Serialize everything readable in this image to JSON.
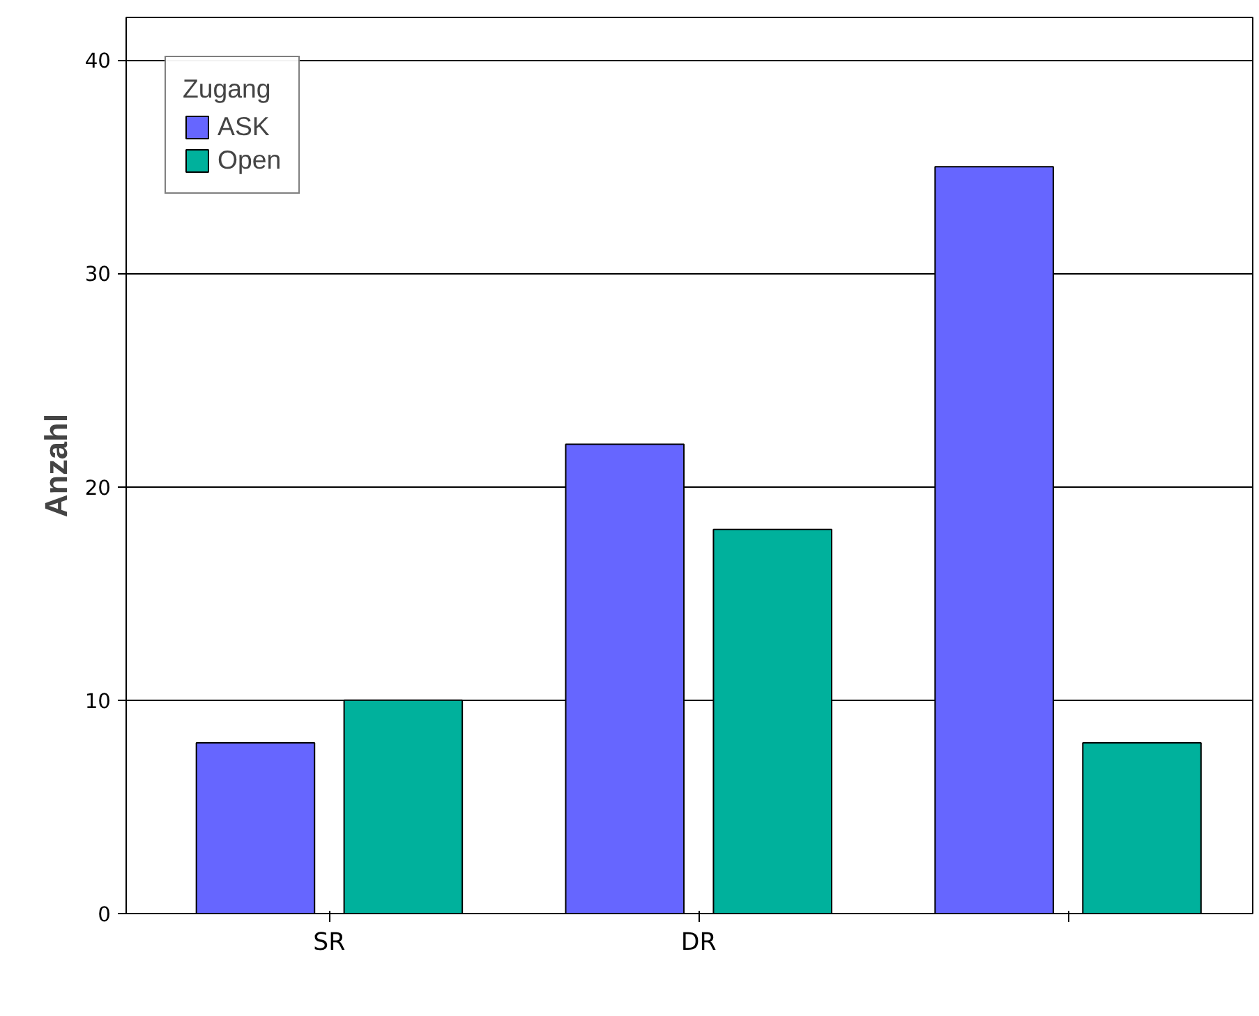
{
  "chart_data": {
    "type": "bar",
    "ylabel": "Anzahl",
    "legend_title": "Zugang",
    "categories": [
      "SR",
      "DR",
      null
    ],
    "series": [
      {
        "name": "ASK",
        "color": "#6666ff",
        "values": [
          8,
          22,
          35
        ]
      },
      {
        "name": "Open",
        "color": "#00b19c",
        "values": [
          10,
          18,
          8
        ]
      }
    ],
    "ylim": [
      0,
      42
    ],
    "yticks": [
      0,
      10,
      20,
      30,
      40
    ],
    "grid": "y",
    "legend": "top left"
  }
}
